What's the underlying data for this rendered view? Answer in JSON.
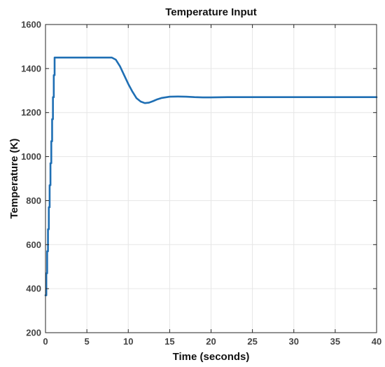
{
  "chart_data": {
    "type": "line",
    "title": "Temperature Input",
    "xlabel": "Time (seconds)",
    "ylabel": "Temperature (K)",
    "xlim": [
      0,
      40
    ],
    "ylim": [
      200,
      1600
    ],
    "xticks": [
      0,
      5,
      10,
      15,
      20,
      25,
      30,
      35,
      40
    ],
    "yticks": [
      200,
      400,
      600,
      800,
      1000,
      1200,
      1400,
      1600
    ],
    "grid": true,
    "legend": "none",
    "line_color": "#1f6fb4",
    "series": [
      {
        "x": [
          0.0,
          0.1,
          0.1,
          0.2,
          0.2,
          0.3,
          0.3,
          0.4,
          0.4,
          0.5,
          0.5,
          0.6,
          0.6,
          0.7,
          0.7,
          0.8,
          0.8,
          0.9,
          0.9,
          1.0,
          1.0,
          1.1,
          1.1,
          8.0,
          8.5,
          9.0,
          9.5,
          10.0,
          10.5,
          11.0,
          11.5,
          12.0,
          12.5,
          13.0,
          13.5,
          14.0,
          15.0,
          16.0,
          17.0,
          18.0,
          19.0,
          20.0,
          22.0,
          40.0
        ],
        "y": [
          370,
          370,
          470,
          470,
          570,
          570,
          670,
          670,
          770,
          770,
          870,
          870,
          970,
          970,
          1070,
          1070,
          1170,
          1170,
          1270,
          1270,
          1370,
          1370,
          1450,
          1450,
          1440,
          1410,
          1370,
          1330,
          1295,
          1265,
          1250,
          1243,
          1245,
          1252,
          1260,
          1266,
          1272,
          1273,
          1272,
          1270,
          1269,
          1269,
          1270,
          1270
        ]
      }
    ]
  }
}
